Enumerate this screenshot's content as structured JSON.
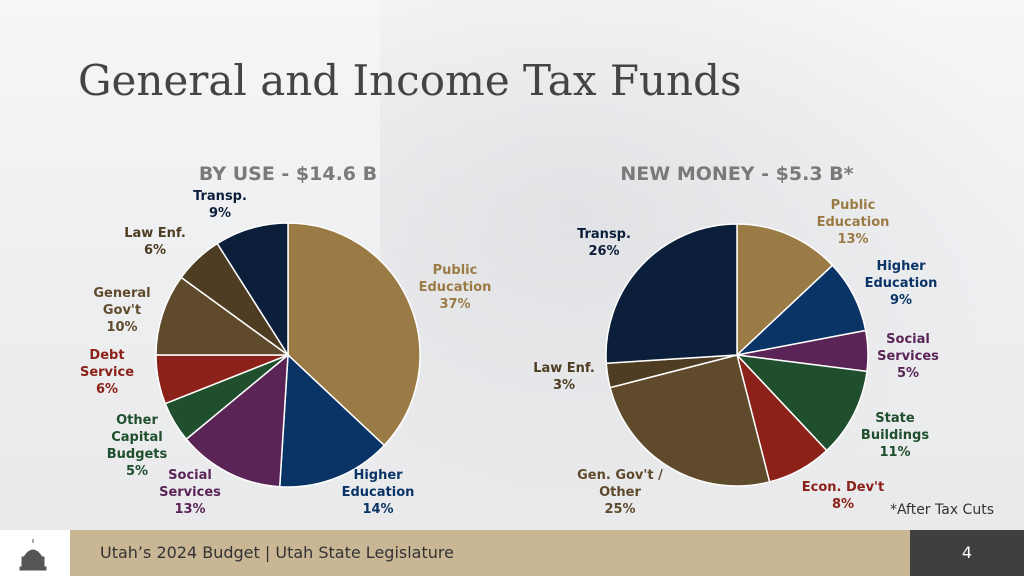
{
  "title": "General and Income Tax Funds",
  "footer": "Utah’s 2024 Budget | Utah State Legislature",
  "page_number": "4",
  "note": "*After Tax Cuts",
  "chart_data": [
    {
      "type": "pie",
      "title": "BY USE - $14.6 B",
      "categories": [
        "Public Education",
        "Higher Education",
        "Social Services",
        "Other Capital Budgets",
        "Debt Service",
        "General Gov't",
        "Law Enf.",
        "Transp."
      ],
      "values": [
        37,
        14,
        13,
        5,
        6,
        10,
        6,
        9
      ],
      "value_labels": [
        "37%",
        "14%",
        "13%",
        "5%",
        "6%",
        "10%",
        "6%",
        "9%"
      ],
      "colors": [
        "#9b7b45",
        "#0b3466",
        "#5b2457",
        "#1f4f2c",
        "#8c2119",
        "#5f4b2c",
        "#4e3c23",
        "#0b1f3b"
      ]
    },
    {
      "type": "pie",
      "title": "NEW MONEY - $5.3 B*",
      "categories": [
        "Public Education",
        "Higher Education",
        "Social Services",
        "State Buildings",
        "Econ. Dev't",
        "Gen. Gov't / Other",
        "Law Enf.",
        "Transp."
      ],
      "values": [
        13,
        9,
        5,
        11,
        8,
        25,
        3,
        26
      ],
      "value_labels": [
        "13%",
        "9%",
        "5%",
        "11%",
        "8%",
        "25%",
        "3%",
        "26%"
      ],
      "colors": [
        "#9b7b45",
        "#0b3466",
        "#5b2457",
        "#1f4f2c",
        "#8c2119",
        "#5f4b2c",
        "#4e3c23",
        "#0b1f3b"
      ]
    }
  ]
}
